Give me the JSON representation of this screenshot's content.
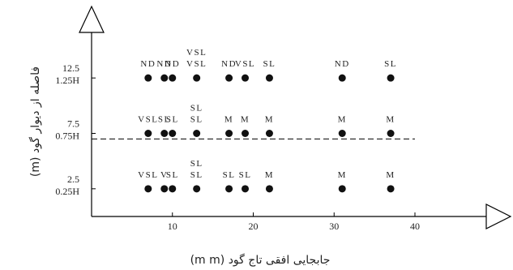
{
  "chart_data": {
    "type": "scatter",
    "xlabel": "جابجایی افقی تاج گود (m m)",
    "ylabel": "فاصله از دیوار گود (m)",
    "x_ticks": [
      10,
      20,
      30,
      40
    ],
    "xlim": [
      0,
      40
    ],
    "ylim": [
      0,
      15
    ],
    "y_ticks": [
      {
        "value": 2.5,
        "label": "2.5",
        "label2": "0.25H"
      },
      {
        "value": 7.5,
        "label": "7.5",
        "label2": "0.75H"
      },
      {
        "value": 12.5,
        "label": "12.5",
        "label2": "1.25H"
      }
    ],
    "dashed_line_y": 7.0,
    "points": [
      {
        "x": 7,
        "y": 2.5,
        "label": "VSL"
      },
      {
        "x": 9,
        "y": 2.5,
        "label": "V"
      },
      {
        "x": 10,
        "y": 2.5,
        "label": "SL"
      },
      {
        "x": 13,
        "y": 2.5,
        "label": "SL"
      },
      {
        "x": 13,
        "y": 2.5,
        "label": "SL"
      },
      {
        "x": 17,
        "y": 2.5,
        "label": "SL"
      },
      {
        "x": 19,
        "y": 2.5,
        "label": "SL"
      },
      {
        "x": 22,
        "y": 2.5,
        "label": "M"
      },
      {
        "x": 31,
        "y": 2.5,
        "label": "M"
      },
      {
        "x": 37,
        "y": 2.5,
        "label": "M"
      },
      {
        "x": 7,
        "y": 7.5,
        "label": "VSL"
      },
      {
        "x": 9,
        "y": 7.5,
        "label": "SL"
      },
      {
        "x": 10,
        "y": 7.5,
        "label": "SL"
      },
      {
        "x": 13,
        "y": 7.5,
        "label": "SL"
      },
      {
        "x": 13,
        "y": 7.5,
        "label": "SL"
      },
      {
        "x": 17,
        "y": 7.5,
        "label": "M"
      },
      {
        "x": 19,
        "y": 7.5,
        "label": "M"
      },
      {
        "x": 22,
        "y": 7.5,
        "label": "M"
      },
      {
        "x": 31,
        "y": 7.5,
        "label": "M"
      },
      {
        "x": 37,
        "y": 7.5,
        "label": "M"
      },
      {
        "x": 7,
        "y": 12.5,
        "label": "ND"
      },
      {
        "x": 9,
        "y": 12.5,
        "label": "ND"
      },
      {
        "x": 10,
        "y": 12.5,
        "label": "ND"
      },
      {
        "x": 13,
        "y": 12.5,
        "label": "VSL"
      },
      {
        "x": 13,
        "y": 12.5,
        "label": "VSL"
      },
      {
        "x": 17,
        "y": 12.5,
        "label": "ND"
      },
      {
        "x": 19,
        "y": 12.5,
        "label": "VSL"
      },
      {
        "x": 22,
        "y": 12.5,
        "label": "SL"
      },
      {
        "x": 31,
        "y": 12.5,
        "label": "ND"
      },
      {
        "x": 37,
        "y": 12.5,
        "label": "SL"
      }
    ]
  }
}
